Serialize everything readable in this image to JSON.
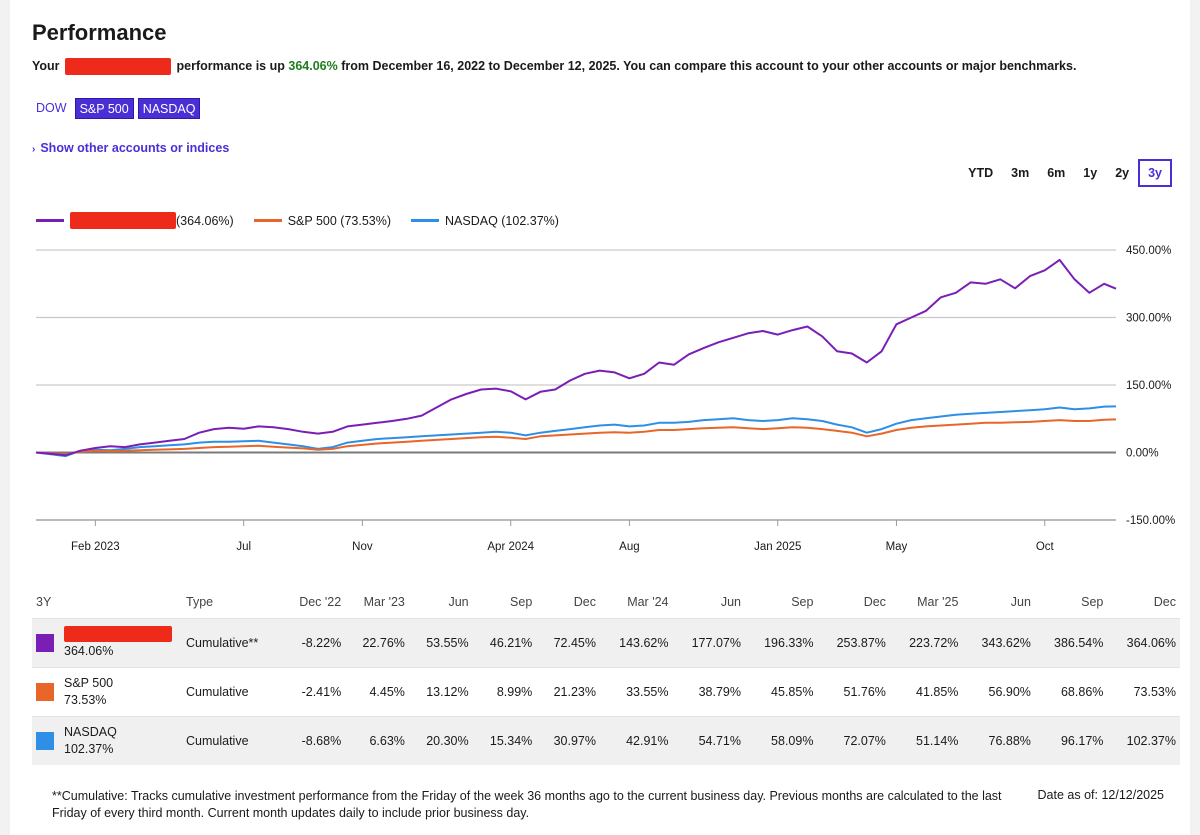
{
  "page": {
    "title": "Performance",
    "summary_prefix": "Your",
    "summary_mid": "performance is up",
    "summary_pct": "364.06%",
    "summary_suffix": "from December 16, 2022 to December 12, 2025. You can compare this account to your other accounts or major benchmarks.",
    "benchmarks": [
      {
        "label": "DOW",
        "active": false
      },
      {
        "label": "S&P 500",
        "active": true
      },
      {
        "label": "NASDAQ",
        "active": true
      }
    ],
    "show_other": "Show other accounts or indices",
    "ranges": [
      {
        "label": "YTD",
        "active": false
      },
      {
        "label": "3m",
        "active": false
      },
      {
        "label": "6m",
        "active": false
      },
      {
        "label": "1y",
        "active": false
      },
      {
        "label": "2y",
        "active": false
      },
      {
        "label": "3y",
        "active": true
      }
    ],
    "colors": {
      "account": "#7a1fb5",
      "sp500": "#e8662a",
      "nasdaq": "#2f8ee5",
      "accent": "#4a2fd6",
      "redact": "#ee2a1a"
    }
  },
  "chart_data": {
    "type": "line",
    "title": "",
    "xlabel": "",
    "ylabel": "",
    "ylim": [
      -150,
      450
    ],
    "yticks": [
      "450.00%",
      "300.00%",
      "150.00%",
      "0.00%",
      "-150.00%"
    ],
    "ytick_values": [
      450,
      300,
      150,
      0,
      -150
    ],
    "xticks": [
      "Feb 2023",
      "Jul",
      "Nov",
      "Apr 2024",
      "Aug",
      "Jan 2025",
      "May",
      "Oct"
    ],
    "xtick_months": [
      1.5,
      6.5,
      10.5,
      15.5,
      19.5,
      24.5,
      28.5,
      33.5
    ],
    "x_range_months": [
      -0.5,
      35.9
    ],
    "legend_position": "top-left",
    "series": [
      {
        "name": "(364.06%)",
        "key": "account",
        "color": "#7a1fb5",
        "values": [
          [
            -0.5,
            0
          ],
          [
            0,
            -3
          ],
          [
            0.5,
            -6
          ],
          [
            1,
            4
          ],
          [
            1.5,
            10
          ],
          [
            2,
            14
          ],
          [
            2.5,
            12
          ],
          [
            3,
            18
          ],
          [
            3.5,
            22
          ],
          [
            4,
            26
          ],
          [
            4.5,
            30
          ],
          [
            5,
            44
          ],
          [
            5.5,
            52
          ],
          [
            6,
            55
          ],
          [
            6.5,
            53
          ],
          [
            7,
            58
          ],
          [
            7.5,
            56
          ],
          [
            8,
            52
          ],
          [
            8.5,
            46
          ],
          [
            9,
            42
          ],
          [
            9.5,
            46
          ],
          [
            10,
            58
          ],
          [
            10.5,
            62
          ],
          [
            11,
            66
          ],
          [
            11.5,
            70
          ],
          [
            12,
            75
          ],
          [
            12.5,
            82
          ],
          [
            13,
            100
          ],
          [
            13.5,
            118
          ],
          [
            14,
            130
          ],
          [
            14.5,
            140
          ],
          [
            15,
            142
          ],
          [
            15.5,
            136
          ],
          [
            16,
            118
          ],
          [
            16.5,
            135
          ],
          [
            17,
            140
          ],
          [
            17.5,
            160
          ],
          [
            18,
            175
          ],
          [
            18.5,
            182
          ],
          [
            19,
            178
          ],
          [
            19.5,
            165
          ],
          [
            20,
            175
          ],
          [
            20.5,
            200
          ],
          [
            21,
            195
          ],
          [
            21.5,
            218
          ],
          [
            22,
            232
          ],
          [
            22.5,
            245
          ],
          [
            23,
            255
          ],
          [
            23.5,
            265
          ],
          [
            24,
            270
          ],
          [
            24.5,
            262
          ],
          [
            25,
            272
          ],
          [
            25.5,
            280
          ],
          [
            26,
            258
          ],
          [
            26.5,
            225
          ],
          [
            27,
            220
          ],
          [
            27.5,
            200
          ],
          [
            28,
            225
          ],
          [
            28.5,
            285
          ],
          [
            29,
            300
          ],
          [
            29.5,
            315
          ],
          [
            30,
            345
          ],
          [
            30.5,
            355
          ],
          [
            31,
            378
          ],
          [
            31.5,
            375
          ],
          [
            32,
            385
          ],
          [
            32.5,
            365
          ],
          [
            33,
            392
          ],
          [
            33.5,
            405
          ],
          [
            34,
            428
          ],
          [
            34.5,
            385
          ],
          [
            35,
            355
          ],
          [
            35.5,
            375
          ],
          [
            35.9,
            364
          ]
        ]
      },
      {
        "name": "S&P 500 (73.53%)",
        "key": "sp500",
        "color": "#e8662a",
        "values": [
          [
            -0.5,
            0
          ],
          [
            0,
            -2
          ],
          [
            0.5,
            -4
          ],
          [
            1,
            2
          ],
          [
            1.5,
            4
          ],
          [
            2,
            3
          ],
          [
            2.5,
            4
          ],
          [
            3,
            5
          ],
          [
            3.5,
            6
          ],
          [
            4,
            7
          ],
          [
            4.5,
            8
          ],
          [
            5,
            10
          ],
          [
            5.5,
            12
          ],
          [
            6,
            13
          ],
          [
            6.5,
            14
          ],
          [
            7,
            15
          ],
          [
            7.5,
            13
          ],
          [
            8,
            11
          ],
          [
            8.5,
            9
          ],
          [
            9,
            6
          ],
          [
            9.5,
            8
          ],
          [
            10,
            14
          ],
          [
            10.5,
            17
          ],
          [
            11,
            20
          ],
          [
            11.5,
            22
          ],
          [
            12,
            24
          ],
          [
            12.5,
            26
          ],
          [
            13,
            28
          ],
          [
            13.5,
            30
          ],
          [
            14,
            32
          ],
          [
            14.5,
            34
          ],
          [
            15,
            35
          ],
          [
            15.5,
            33
          ],
          [
            16,
            30
          ],
          [
            16.5,
            36
          ],
          [
            17,
            38
          ],
          [
            17.5,
            40
          ],
          [
            18,
            42
          ],
          [
            18.5,
            44
          ],
          [
            19,
            45
          ],
          [
            19.5,
            44
          ],
          [
            20,
            46
          ],
          [
            20.5,
            50
          ],
          [
            21,
            50
          ],
          [
            21.5,
            52
          ],
          [
            22,
            54
          ],
          [
            22.5,
            55
          ],
          [
            23,
            56
          ],
          [
            23.5,
            54
          ],
          [
            24,
            52
          ],
          [
            24.5,
            54
          ],
          [
            25,
            56
          ],
          [
            25.5,
            55
          ],
          [
            26,
            52
          ],
          [
            26.5,
            48
          ],
          [
            27,
            44
          ],
          [
            27.5,
            36
          ],
          [
            28,
            42
          ],
          [
            28.5,
            50
          ],
          [
            29,
            55
          ],
          [
            29.5,
            58
          ],
          [
            30,
            60
          ],
          [
            30.5,
            62
          ],
          [
            31,
            64
          ],
          [
            31.5,
            66
          ],
          [
            32,
            66
          ],
          [
            32.5,
            67
          ],
          [
            33,
            68
          ],
          [
            33.5,
            70
          ],
          [
            34,
            72
          ],
          [
            34.5,
            70
          ],
          [
            35,
            70
          ],
          [
            35.5,
            73
          ],
          [
            35.9,
            73.5
          ]
        ]
      },
      {
        "name": "NASDAQ (102.37%)",
        "key": "nasdaq",
        "color": "#2f8ee5",
        "values": [
          [
            -0.5,
            0
          ],
          [
            0,
            -4
          ],
          [
            0.5,
            -8
          ],
          [
            1,
            4
          ],
          [
            1.5,
            6
          ],
          [
            2,
            5
          ],
          [
            2.5,
            8
          ],
          [
            3,
            12
          ],
          [
            3.5,
            14
          ],
          [
            4,
            16
          ],
          [
            4.5,
            18
          ],
          [
            5,
            22
          ],
          [
            5.5,
            24
          ],
          [
            6,
            24
          ],
          [
            6.5,
            25
          ],
          [
            7,
            26
          ],
          [
            7.5,
            22
          ],
          [
            8,
            18
          ],
          [
            8.5,
            14
          ],
          [
            9,
            8
          ],
          [
            9.5,
            12
          ],
          [
            10,
            22
          ],
          [
            10.5,
            26
          ],
          [
            11,
            30
          ],
          [
            11.5,
            32
          ],
          [
            12,
            34
          ],
          [
            12.5,
            36
          ],
          [
            13,
            38
          ],
          [
            13.5,
            40
          ],
          [
            14,
            42
          ],
          [
            14.5,
            44
          ],
          [
            15,
            46
          ],
          [
            15.5,
            44
          ],
          [
            16,
            38
          ],
          [
            16.5,
            44
          ],
          [
            17,
            48
          ],
          [
            17.5,
            52
          ],
          [
            18,
            56
          ],
          [
            18.5,
            60
          ],
          [
            19,
            62
          ],
          [
            19.5,
            58
          ],
          [
            20,
            60
          ],
          [
            20.5,
            66
          ],
          [
            21,
            66
          ],
          [
            21.5,
            68
          ],
          [
            22,
            72
          ],
          [
            22.5,
            74
          ],
          [
            23,
            76
          ],
          [
            23.5,
            72
          ],
          [
            24,
            70
          ],
          [
            24.5,
            72
          ],
          [
            25,
            76
          ],
          [
            25.5,
            74
          ],
          [
            26,
            70
          ],
          [
            26.5,
            62
          ],
          [
            27,
            56
          ],
          [
            27.5,
            44
          ],
          [
            28,
            52
          ],
          [
            28.5,
            64
          ],
          [
            29,
            72
          ],
          [
            29.5,
            76
          ],
          [
            30,
            80
          ],
          [
            30.5,
            84
          ],
          [
            31,
            86
          ],
          [
            31.5,
            88
          ],
          [
            32,
            90
          ],
          [
            32.5,
            92
          ],
          [
            33,
            94
          ],
          [
            33.5,
            96
          ],
          [
            34,
            100
          ],
          [
            34.5,
            96
          ],
          [
            35,
            98
          ],
          [
            35.5,
            102
          ],
          [
            35.9,
            102.4
          ]
        ]
      }
    ]
  },
  "table": {
    "headers": [
      "3Y",
      "Type",
      "Dec '22",
      "Mar '23",
      "Jun",
      "Sep",
      "Dec",
      "Mar '24",
      "Jun",
      "Sep",
      "Dec",
      "Mar '25",
      "Jun",
      "Sep",
      "Dec"
    ],
    "rows": [
      {
        "name": "",
        "total": "364.06%",
        "type": "Cumulative**",
        "color": "#7a1fb5",
        "redacted": true,
        "values": [
          "-8.22%",
          "22.76%",
          "53.55%",
          "46.21%",
          "72.45%",
          "143.62%",
          "177.07%",
          "196.33%",
          "253.87%",
          "223.72%",
          "343.62%",
          "386.54%",
          "364.06%"
        ]
      },
      {
        "name": "S&P 500",
        "total": "73.53%",
        "type": "Cumulative",
        "color": "#e8662a",
        "redacted": false,
        "values": [
          "-2.41%",
          "4.45%",
          "13.12%",
          "8.99%",
          "21.23%",
          "33.55%",
          "38.79%",
          "45.85%",
          "51.76%",
          "41.85%",
          "56.90%",
          "68.86%",
          "73.53%"
        ]
      },
      {
        "name": "NASDAQ",
        "total": "102.37%",
        "type": "Cumulative",
        "color": "#2f8ee5",
        "redacted": false,
        "values": [
          "-8.68%",
          "6.63%",
          "20.30%",
          "15.34%",
          "30.97%",
          "42.91%",
          "54.71%",
          "58.09%",
          "72.07%",
          "51.14%",
          "76.88%",
          "96.17%",
          "102.37%"
        ]
      }
    ]
  },
  "footnote": "**Cumulative: Tracks cumulative investment performance from the Friday of the week 36 months ago to the current business day. Previous months are calculated to the last Friday of every third month. Current month updates daily to include prior business day.",
  "date_asof": "Date as of: 12/12/2025"
}
